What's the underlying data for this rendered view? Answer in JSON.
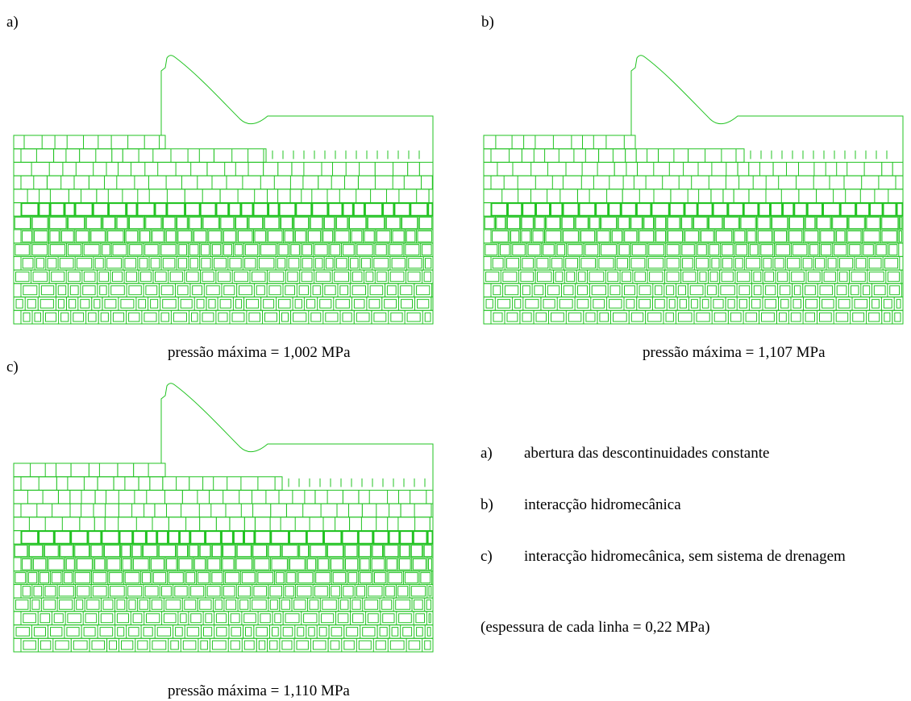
{
  "panels": [
    {
      "label": "a)",
      "caption": "pressão máxima = 1,002 MPa"
    },
    {
      "label": "b)",
      "caption": "pressão máxima = 1,107 MPa"
    },
    {
      "label": "c)",
      "caption": "pressão máxima = 1,110 MPa"
    }
  ],
  "legend": {
    "items": [
      {
        "label": "a)",
        "text": "abertura das descontinuidades constante"
      },
      {
        "label": "b)",
        "text": "interacção hidromecânica"
      },
      {
        "label": "c)",
        "text": "interacção hidromecânica, sem sistema de drenagem"
      }
    ],
    "note": "(espessura de cada linha = 0,22 MPa)"
  }
}
